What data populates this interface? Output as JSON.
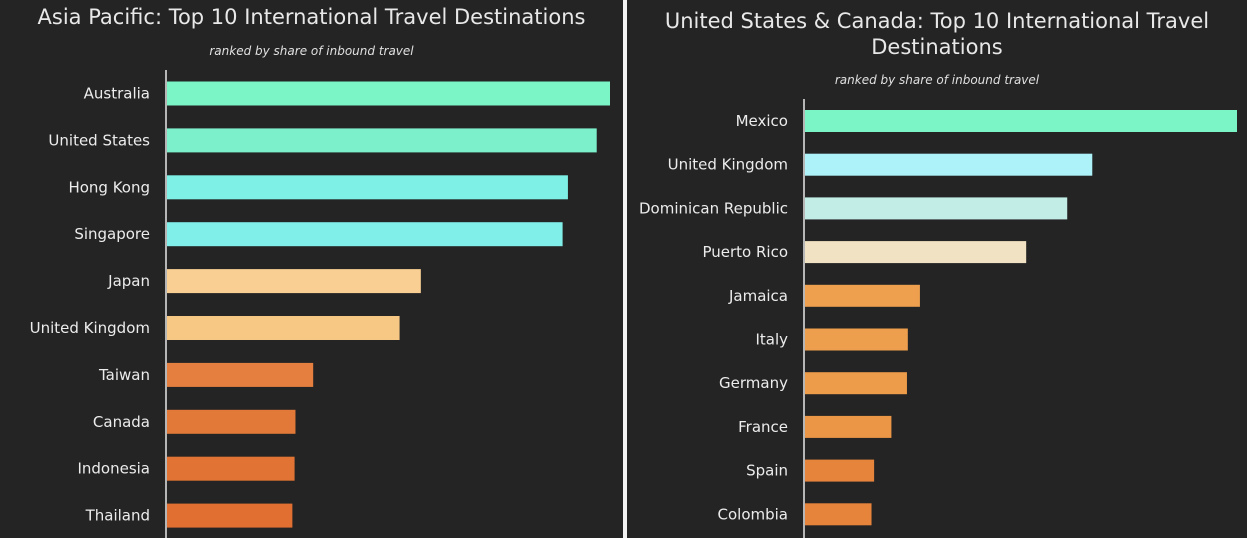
{
  "chart_data": [
    {
      "type": "bar",
      "orientation": "horizontal",
      "title": "Asia Pacific: Top 10 International Travel Destinations",
      "subtitle": "ranked by share of inbound travel",
      "categories": [
        "Australia",
        "United States",
        "Hong Kong",
        "Singapore",
        "Japan",
        "United Kingdom",
        "Taiwan",
        "Canada",
        "Indonesia",
        "Thailand"
      ],
      "values": [
        100,
        97,
        90.5,
        89.3,
        57.3,
        52.5,
        33,
        29,
        28.8,
        28.3
      ],
      "colors": [
        "#7cf5c6",
        "#7cf0cb",
        "#7ef0e6",
        "#80efea",
        "#f9cf93",
        "#f7c784",
        "#e47f3f",
        "#e27938",
        "#e17434",
        "#e16f31"
      ],
      "xlim": [
        0,
        100
      ],
      "axis_labels_shown": false,
      "grid": false,
      "legend": "none"
    },
    {
      "type": "bar",
      "orientation": "horizontal",
      "title": "United States & Canada: Top 10 International Travel Destinations",
      "subtitle": "ranked by share of inbound travel",
      "categories": [
        "Mexico",
        "United Kingdom",
        "Dominican Republic",
        "Puerto Rico",
        "Jamaica",
        "Italy",
        "Germany",
        "France",
        "Spain",
        "Colombia"
      ],
      "values": [
        100,
        66.5,
        60.7,
        51.2,
        26.6,
        23.8,
        23.6,
        20,
        16,
        15.4
      ],
      "colors": [
        "#7cf5c6",
        "#adf2f8",
        "#c2ede6",
        "#f0e2c2",
        "#eea04e",
        "#ee9f4d",
        "#ed9c49",
        "#eb9646",
        "#e6843c",
        "#e6843c"
      ],
      "xlim": [
        0,
        100
      ],
      "axis_labels_shown": false,
      "grid": false,
      "legend": "none"
    }
  ]
}
